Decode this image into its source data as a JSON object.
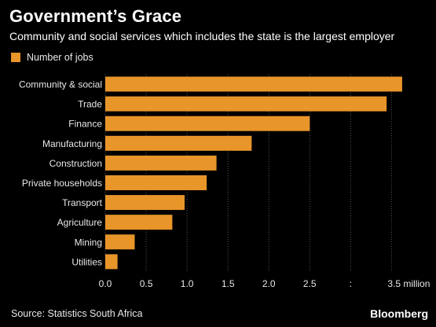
{
  "header": {
    "title": "Government’s Grace",
    "subtitle": "Community and social services which includes the state is the largest employer"
  },
  "legend": {
    "label": "Number of jobs"
  },
  "colors": {
    "bar": "#E8952A",
    "axis_text": "#e8e8e8",
    "grid": "#555555",
    "background": "#000000"
  },
  "chart_data": {
    "type": "bar",
    "orientation": "horizontal",
    "categories": [
      "Community & social",
      "Trade",
      "Finance",
      "Manufacturing",
      "Construction",
      "Private households",
      "Transport",
      "Agriculture",
      "Mining",
      "Utilities"
    ],
    "series": [
      {
        "name": "Number of jobs",
        "values": [
          3.63,
          3.44,
          2.5,
          1.79,
          1.36,
          1.24,
          0.97,
          0.82,
          0.36,
          0.15
        ]
      }
    ],
    "x_ticks": [
      "0.0",
      "0.5",
      "1.0",
      "1.5",
      "2.0",
      "2.5",
      ":",
      "3.5 million"
    ],
    "x_tick_values": [
      0,
      0.5,
      1.0,
      1.5,
      2.0,
      2.5,
      3.0,
      3.5
    ],
    "xlim": [
      0,
      3.65
    ],
    "xlabel": "",
    "ylabel": "",
    "grid": true,
    "legend_position": "top-left"
  },
  "footer": {
    "source": "Source: Statistics South Africa",
    "brand": "Bloomberg"
  }
}
